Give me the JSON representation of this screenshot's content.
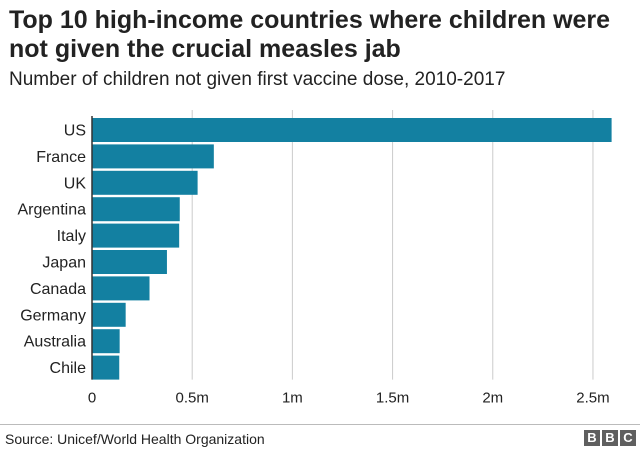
{
  "header": {
    "title": "Top 10 high-income countries where children were not given the crucial measles jab",
    "subtitle": "Number of children not given first vaccine dose, 2010-2017"
  },
  "footer": {
    "source": "Source: Unicef/World Health Organization",
    "logo_letters": [
      "B",
      "B",
      "C"
    ]
  },
  "colors": {
    "bar": "#1380A1",
    "grid": "#cbcbcb",
    "axis": "#333333",
    "text": "#222222"
  },
  "chart_data": {
    "type": "bar",
    "orientation": "horizontal",
    "title": "Top 10 high-income countries where children were not given the crucial measles jab",
    "subtitle": "Number of children not given first vaccine dose, 2010-2017",
    "categories": [
      "US",
      "France",
      "UK",
      "Argentina",
      "Italy",
      "Japan",
      "Canada",
      "Germany",
      "Australia",
      "Chile"
    ],
    "values": [
      2593000,
      608000,
      527000,
      438000,
      435000,
      374000,
      287000,
      168000,
      138000,
      136000
    ],
    "xlabel": "",
    "ylabel": "",
    "xlim": [
      0,
      2600000
    ],
    "xticks": [
      0,
      500000,
      1000000,
      1500000,
      2000000,
      2500000
    ],
    "xtick_labels": [
      "0",
      "0.5m",
      "1m",
      "1.5m",
      "2m",
      "2.5m"
    ],
    "grid": "vertical",
    "legend": "none"
  }
}
